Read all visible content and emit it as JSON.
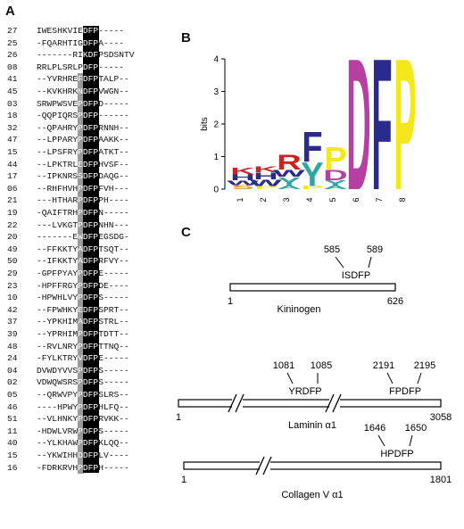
{
  "panels": {
    "a": "A",
    "b": "B",
    "c": "C"
  },
  "alignment": {
    "rows": [
      {
        "id": "27",
        "seq": "IWESHKVIEDFP-----"
      },
      {
        "id": "25",
        "seq": "-FQARHTIGDFPA----"
      },
      {
        "id": "26",
        "seq": "-------RIKDFPSDSNTV"
      },
      {
        "id": "08",
        "seq": "RRLPLSRLPDFP-----"
      },
      {
        "id": "41",
        "seq": "--YVRHREFDFPTALP--"
      },
      {
        "id": "45",
        "seq": "--KVKHRKNDFPVWGN--"
      },
      {
        "id": "03",
        "seq": "SRWPWSVEPDFPD-----"
      },
      {
        "id": "18",
        "seq": "-QQPIQRSPDFP------"
      },
      {
        "id": "32",
        "seq": "--QPAHRYPDFPRNNH--"
      },
      {
        "id": "47",
        "seq": "--LPPARYPDFPAAKK--"
      },
      {
        "id": "15",
        "seq": "--LPSFRYPDFPATKT--"
      },
      {
        "id": "44",
        "seq": "--LPKTRLEDFPHVSF--"
      },
      {
        "id": "17",
        "seq": "--IPKNRSSDFPDAQG--"
      },
      {
        "id": "06",
        "seq": "--RHFHVHPDFPFVH---"
      },
      {
        "id": "21",
        "seq": "---HTHARPDFPPH----"
      },
      {
        "id": "19",
        "seq": "-QAIFTRHPDFPN-----"
      },
      {
        "id": "22",
        "seq": "---LVKGTPDFPNHN---"
      },
      {
        "id": "20",
        "seq": "-------EWDFPEGSDG-"
      },
      {
        "id": "49",
        "seq": "--FFKKTYADFPTSQT--"
      },
      {
        "id": "50",
        "seq": "--IFKKTYADFPRFVY--"
      },
      {
        "id": "29",
        "seq": "-GPFPYAYPDFPE-----"
      },
      {
        "id": "23",
        "seq": "-HPFFRGYPDFPDE----"
      },
      {
        "id": "10",
        "seq": "-HPWHLVYPDFPS-----"
      },
      {
        "id": "42",
        "seq": "--FPWHKYEDFPSPRT--"
      },
      {
        "id": "37",
        "seq": "--YPKHIMADFPSTRL--"
      },
      {
        "id": "39",
        "seq": "--YPRHIMPDFPTDTT--"
      },
      {
        "id": "48",
        "seq": "--RVLNRYPDFPTTNQ--"
      },
      {
        "id": "24",
        "seq": "-FYLKTRYVDFPE-----"
      },
      {
        "id": "04",
        "seq": "DVWDYVVSPDFPS-----"
      },
      {
        "id": "02",
        "seq": "VDWQWSRSPDFPS-----"
      },
      {
        "id": "05",
        "seq": "--QRWVPYPDFPSLRS--"
      },
      {
        "id": "46",
        "seq": "----HPWYPDFPHLFQ--"
      },
      {
        "id": "51",
        "seq": "--VLHNKYPDFPRVKK--"
      },
      {
        "id": "11",
        "seq": "-HDWLVRWPDFPS-----"
      },
      {
        "id": "40",
        "seq": "--YLKHAWPDFPKLQQ--"
      },
      {
        "id": "15b",
        "seq": "--YKWIHHDDFPLV----"
      },
      {
        "id": "16",
        "seq": "-FDRKRVHPDFPH-----"
      }
    ]
  },
  "logo": {
    "axis_label": "bits",
    "y_ticks": [
      "0",
      "1",
      "2",
      "3",
      "4"
    ],
    "x_ticks": [
      "1",
      "2",
      "3",
      "4",
      "5",
      "6",
      "7",
      "8"
    ],
    "colors": {
      "D": "#b53fa3",
      "F": "#2a2a8f",
      "P": "#f5e81a",
      "R": "#d21f1f",
      "Y": "#2fa7a0",
      "K": "#d21f1f",
      "W": "#2a2a8f",
      "H": "#2a2a8f"
    }
  },
  "proteins": [
    {
      "name": "Kininogen",
      "start": "1",
      "end": "626",
      "motifs": [
        {
          "pos1": "585",
          "pos2": "589",
          "seq": "ISDFP"
        }
      ]
    },
    {
      "name": "Laminin α1",
      "start": "1",
      "end": "3058",
      "motifs": [
        {
          "pos1": "1081",
          "pos2": "1085",
          "seq": "YRDFP"
        },
        {
          "pos1": "2191",
          "pos2": "2195",
          "seq": "FPDFP"
        }
      ]
    },
    {
      "name": "Collagen V α1",
      "start": "1",
      "end": "1801",
      "motifs": [
        {
          "pos1": "1646",
          "pos2": "1650",
          "seq": "HPDFP"
        }
      ]
    }
  ]
}
